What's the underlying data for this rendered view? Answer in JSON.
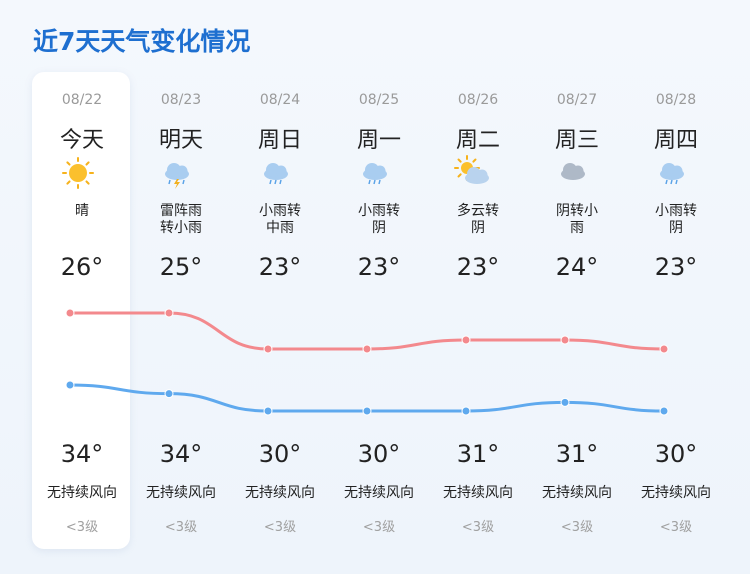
{
  "title": "近7天天气变化情况",
  "days": [
    {
      "date": "08/22",
      "name": "今天",
      "weather": "晴",
      "low": 26,
      "low_label": "26°",
      "high": 34,
      "high_label": "34°",
      "wind": "无持续风向",
      "level": "<3级"
    },
    {
      "date": "08/23",
      "name": "明天",
      "weather": "雷阵雨转小雨",
      "low": 25,
      "low_label": "25°",
      "high": 34,
      "high_label": "34°",
      "wind": "无持续风向",
      "level": "<3级"
    },
    {
      "date": "08/24",
      "name": "周日",
      "weather": "小雨转中雨",
      "low": 23,
      "low_label": "23°",
      "high": 30,
      "high_label": "30°",
      "wind": "无持续风向",
      "level": "<3级"
    },
    {
      "date": "08/25",
      "name": "周一",
      "weather": "小雨转阴",
      "low": 23,
      "low_label": "23°",
      "high": 30,
      "high_label": "30°",
      "wind": "无持续风向",
      "level": "<3级"
    },
    {
      "date": "08/26",
      "name": "周二",
      "weather": "多云转阴",
      "low": 23,
      "low_label": "23°",
      "high": 31,
      "high_label": "31°",
      "wind": "无持续风向",
      "level": "<3级"
    },
    {
      "date": "08/27",
      "name": "周三",
      "weather": "阴转小雨",
      "low": 24,
      "low_label": "24°",
      "high": 31,
      "high_label": "31°",
      "wind": "无持续风向",
      "level": "<3级"
    },
    {
      "date": "08/28",
      "name": "周四",
      "weather": "小雨转阴",
      "low": 23,
      "low_label": "23°",
      "high": 30,
      "high_label": "30°",
      "wind": "无持续风向",
      "level": "<3级"
    }
  ]
}
